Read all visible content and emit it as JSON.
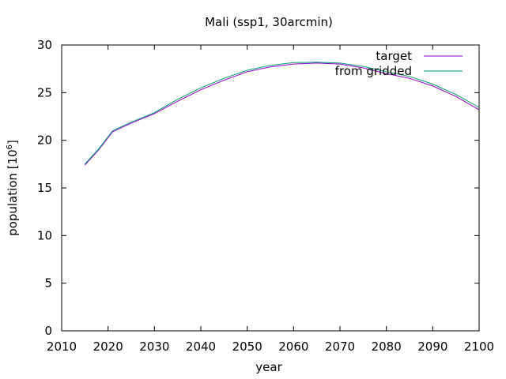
{
  "chart_data": {
    "type": "line",
    "title": "Mali (ssp1, 30arcmin)",
    "xlabel": "year",
    "ylabel": {
      "base": "population [10",
      "sup": "6",
      "end": "]"
    },
    "xlim": [
      2010,
      2100
    ],
    "ylim": [
      0,
      30
    ],
    "xticks": [
      2010,
      2020,
      2030,
      2040,
      2050,
      2060,
      2070,
      2080,
      2090,
      2100
    ],
    "yticks": [
      0,
      5,
      10,
      15,
      20,
      25,
      30
    ],
    "grid": false,
    "legend_position": "top-right",
    "series": [
      {
        "name": "target",
        "color": "#9400d3",
        "x": [
          2015,
          2018,
          2021,
          2025,
          2030,
          2035,
          2040,
          2045,
          2050,
          2055,
          2060,
          2065,
          2070,
          2075,
          2080,
          2085,
          2090,
          2095,
          2100
        ],
        "y": [
          17.4,
          19.0,
          20.9,
          21.8,
          22.8,
          24.1,
          25.3,
          26.3,
          27.2,
          27.7,
          28.0,
          28.1,
          28.0,
          27.6,
          27.0,
          26.5,
          25.7,
          24.6,
          23.2
        ]
      },
      {
        "name": "from gridded",
        "color": "#009e73",
        "x": [
          2015,
          2018,
          2021,
          2025,
          2030,
          2035,
          2040,
          2045,
          2050,
          2055,
          2060,
          2065,
          2070,
          2075,
          2080,
          2085,
          2090,
          2095,
          2100
        ],
        "y": [
          17.5,
          19.1,
          21.0,
          21.9,
          22.9,
          24.3,
          25.5,
          26.5,
          27.35,
          27.85,
          28.15,
          28.2,
          28.1,
          27.75,
          27.2,
          26.7,
          25.9,
          24.8,
          23.45
        ]
      }
    ]
  }
}
